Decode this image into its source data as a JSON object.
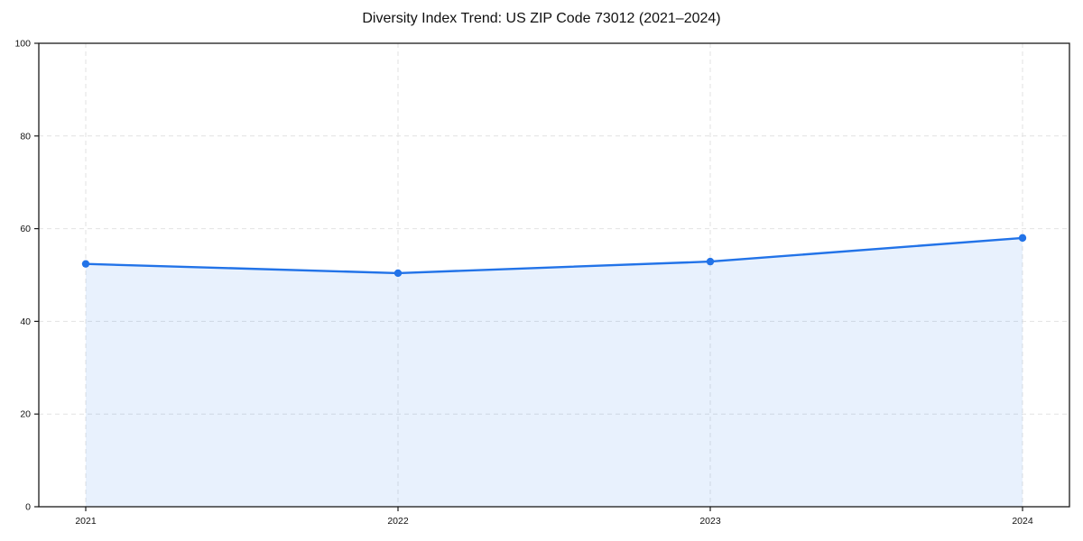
{
  "chart_data": {
    "type": "area",
    "title": "Diversity Index Trend: US ZIP Code 73012 (2021–2024)",
    "categories": [
      "2021",
      "2022",
      "2023",
      "2024"
    ],
    "series": [
      {
        "name": "Diversity Index",
        "values": [
          52.4,
          50.4,
          52.9,
          58.0
        ]
      }
    ],
    "xlabel": "",
    "ylabel": "",
    "ylim": [
      0,
      100
    ],
    "yticks": [
      0,
      20,
      40,
      60,
      80,
      100
    ],
    "grid": true,
    "grid_style": "dashed",
    "legend": false,
    "line_color": "#2273e8",
    "marker_color": "#2273e8",
    "fill_color": "#2273e8",
    "fill_opacity": 0.1,
    "grid_color": "#e2e2e2",
    "axis_color": "#1a1a1a",
    "tick_label_color": "#111111",
    "background_color": "#ffffff"
  }
}
